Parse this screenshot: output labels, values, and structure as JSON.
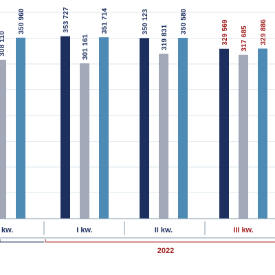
{
  "chart_data": {
    "type": "bar",
    "categories": [
      "kw.",
      "I kw.",
      "II kw.",
      "III kw."
    ],
    "series": [
      {
        "values": [
          null,
          353727,
          350123,
          329569
        ]
      },
      {
        "values": [
          308110,
          301161,
          319831,
          317685
        ]
      },
      {
        "values": [
          350960,
          351714,
          350580,
          329886
        ]
      }
    ],
    "value_labels": [
      [
        null,
        "353 727",
        "350 123",
        "329 569"
      ],
      [
        "308 110",
        "301 161",
        "319 831",
        "317 685"
      ],
      [
        "350 960",
        "351 714",
        "350 580",
        "329 886"
      ]
    ],
    "group_label": "2022",
    "ylim": [
      0,
      400000
    ],
    "grid": true,
    "colors": {
      "series": [
        "#1c2f5e",
        "#a3a8b8",
        "#4d8bb5"
      ],
      "highlight_label": "#a32020",
      "normal_label": "#1c2f5e",
      "grid": "#dbe6ee",
      "axis": "#7f98ae"
    },
    "highlighted_category": "III kw."
  }
}
